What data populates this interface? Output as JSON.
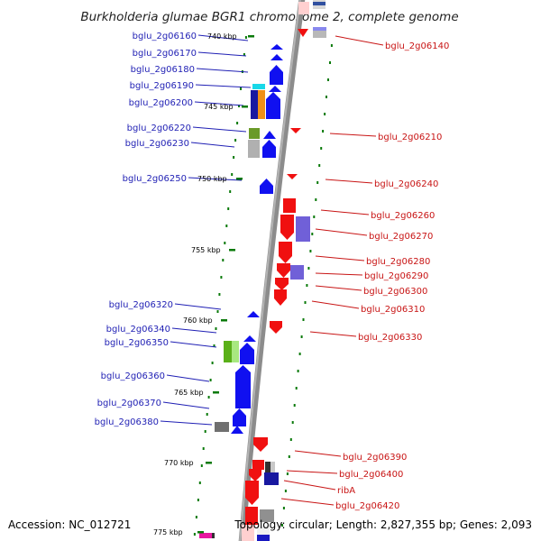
{
  "title": "Burkholderia glumae BGR1 chromosome 2, complete genome",
  "accession": "Accession: NC_012721",
  "topology": "Topology: circular; Length: 2,827,355 bp; Genes: 2,093",
  "colors": {
    "forward": "#1010f0",
    "reverse": "#f01010",
    "tick": "#0a7a0a",
    "label_forward": "#1f1fb4",
    "label_reverse": "#c81414",
    "backbone": "#8c8c8c"
  },
  "kbp_ticks": [
    "740 kbp",
    "745 kbp",
    "750 kbp",
    "755 kbp",
    "760 kbp",
    "765 kbp",
    "770 kbp",
    "775 kbp"
  ],
  "forward_genes": [
    "bglu_2g06160",
    "bglu_2g06170",
    "bglu_2g06180",
    "bglu_2g06190",
    "bglu_2g06200",
    "bglu_2g06220",
    "bglu_2g06230",
    "bglu_2g06250",
    "bglu_2g06320",
    "bglu_2g06340",
    "bglu_2g06350",
    "bglu_2g06360",
    "bglu_2g06370",
    "bglu_2g06380"
  ],
  "reverse_genes": [
    "bglu_2g06140",
    "bglu_2g06210",
    "bglu_2g06240",
    "bglu_2g06260",
    "bglu_2g06270",
    "bglu_2g06280",
    "bglu_2g06290",
    "bglu_2g06300",
    "bglu_2g06310",
    "bglu_2g06330",
    "bglu_2g06390",
    "bglu_2g06400",
    "ribA",
    "bglu_2g06420"
  ]
}
